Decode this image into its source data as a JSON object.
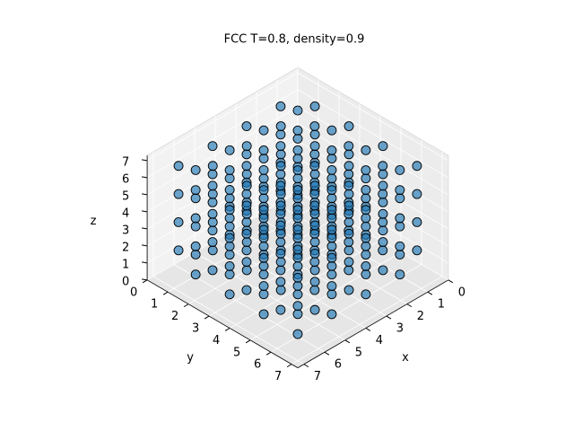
{
  "chart_data": {
    "type": "scatter3d",
    "title": "FCC T=0.8, density=0.9",
    "x_label": "x",
    "y_label": "y",
    "z_label": "z",
    "xlim": [
      0,
      7.3
    ],
    "ylim": [
      0,
      7.3
    ],
    "zlim": [
      0,
      7.3
    ],
    "xticks": [
      0,
      1,
      2,
      3,
      4,
      5,
      6,
      7
    ],
    "yticks": [
      0,
      1,
      2,
      3,
      4,
      5,
      6,
      7
    ],
    "zticks": [
      0,
      1,
      2,
      3,
      4,
      5,
      6,
      7
    ],
    "grid": true,
    "color": "#1f77b4",
    "x": [
      0.4,
      0.4,
      0.4,
      0.4,
      0.4,
      0.4,
      0.4,
      0.4,
      0.4,
      0.4,
      0.4,
      0.4,
      0.4,
      0.4,
      0.4,
      0.4,
      0.4,
      0.4,
      0.4,
      0.4,
      0.4,
      0.4,
      0.4,
      0.4,
      0.4,
      0.4,
      0.4,
      0.4,
      0.4,
      0.4,
      0.4,
      0.4,
      1.23,
      1.23,
      1.23,
      1.23,
      1.23,
      1.23,
      1.23,
      1.23,
      1.23,
      1.23,
      1.23,
      1.23,
      1.23,
      1.23,
      1.23,
      1.23,
      1.23,
      1.23,
      1.23,
      1.23,
      1.23,
      1.23,
      1.23,
      1.23,
      1.23,
      1.23,
      1.23,
      1.23,
      1.23,
      1.23,
      1.23,
      1.23,
      2.05,
      2.05,
      2.05,
      2.05,
      2.05,
      2.05,
      2.05,
      2.05,
      2.05,
      2.05,
      2.05,
      2.05,
      2.05,
      2.05,
      2.05,
      2.05,
      2.05,
      2.05,
      2.05,
      2.05,
      2.05,
      2.05,
      2.05,
      2.05,
      2.05,
      2.05,
      2.05,
      2.05,
      2.05,
      2.05,
      2.05,
      2.05,
      2.88,
      2.88,
      2.88,
      2.88,
      2.88,
      2.88,
      2.88,
      2.88,
      2.88,
      2.88,
      2.88,
      2.88,
      2.88,
      2.88,
      2.88,
      2.88,
      2.88,
      2.88,
      2.88,
      2.88,
      2.88,
      2.88,
      2.88,
      2.88,
      2.88,
      2.88,
      2.88,
      2.88,
      2.88,
      2.88,
      2.88,
      2.88,
      3.7,
      3.7,
      3.7,
      3.7,
      3.7,
      3.7,
      3.7,
      3.7,
      3.7,
      3.7,
      3.7,
      3.7,
      3.7,
      3.7,
      3.7,
      3.7,
      3.7,
      3.7,
      3.7,
      3.7,
      3.7,
      3.7,
      3.7,
      3.7,
      3.7,
      3.7,
      3.7,
      3.7,
      3.7,
      3.7,
      3.7,
      3.7,
      4.53,
      4.53,
      4.53,
      4.53,
      4.53,
      4.53,
      4.53,
      4.53,
      4.53,
      4.53,
      4.53,
      4.53,
      4.53,
      4.53,
      4.53,
      4.53,
      4.53,
      4.53,
      4.53,
      4.53,
      4.53,
      4.53,
      4.53,
      4.53,
      4.53,
      4.53,
      4.53,
      4.53,
      4.53,
      4.53,
      4.53,
      4.53,
      5.35,
      5.35,
      5.35,
      5.35,
      5.35,
      5.35,
      5.35,
      5.35,
      5.35,
      5.35,
      5.35,
      5.35,
      5.35,
      5.35,
      5.35,
      5.35,
      5.35,
      5.35,
      5.35,
      5.35,
      5.35,
      5.35,
      5.35,
      5.35,
      5.35,
      5.35,
      5.35,
      5.35,
      5.35,
      5.35,
      5.35,
      5.35,
      6.18,
      6.18,
      6.18,
      6.18,
      6.18,
      6.18,
      6.18,
      6.18,
      6.18,
      6.18,
      6.18,
      6.18,
      6.18,
      6.18,
      6.18,
      6.18,
      6.18,
      6.18,
      6.18,
      6.18,
      6.18,
      6.18,
      6.18,
      6.18,
      6.18,
      6.18,
      6.18,
      6.18,
      6.18,
      6.18,
      6.18,
      6.18
    ],
    "y": [
      0.4,
      0.4,
      0.4,
      0.4,
      1.23,
      1.23,
      1.23,
      1.23,
      2.05,
      2.05,
      2.05,
      2.05,
      2.88,
      2.88,
      2.88,
      2.88,
      3.7,
      3.7,
      3.7,
      3.7,
      4.53,
      4.53,
      4.53,
      4.53,
      5.35,
      5.35,
      5.35,
      5.35,
      6.18,
      6.18,
      6.18,
      6.18,
      0.4,
      0.4,
      0.4,
      0.4,
      1.23,
      1.23,
      1.23,
      1.23,
      2.05,
      2.05,
      2.05,
      2.05,
      2.88,
      2.88,
      2.88,
      2.88,
      3.7,
      3.7,
      3.7,
      3.7,
      4.53,
      4.53,
      4.53,
      4.53,
      5.35,
      5.35,
      5.35,
      5.35,
      6.18,
      6.18,
      6.18,
      6.18,
      0.4,
      0.4,
      0.4,
      0.4,
      1.23,
      1.23,
      1.23,
      1.23,
      2.05,
      2.05,
      2.05,
      2.05,
      2.88,
      2.88,
      2.88,
      2.88,
      3.7,
      3.7,
      3.7,
      3.7,
      4.53,
      4.53,
      4.53,
      4.53,
      5.35,
      5.35,
      5.35,
      5.35,
      6.18,
      6.18,
      6.18,
      6.18,
      0.4,
      0.4,
      0.4,
      0.4,
      1.23,
      1.23,
      1.23,
      1.23,
      2.05,
      2.05,
      2.05,
      2.05,
      2.88,
      2.88,
      2.88,
      2.88,
      3.7,
      3.7,
      3.7,
      3.7,
      4.53,
      4.53,
      4.53,
      4.53,
      5.35,
      5.35,
      5.35,
      5.35,
      6.18,
      6.18,
      6.18,
      6.18,
      0.4,
      0.4,
      0.4,
      0.4,
      1.23,
      1.23,
      1.23,
      1.23,
      2.05,
      2.05,
      2.05,
      2.05,
      2.88,
      2.88,
      2.88,
      2.88,
      3.7,
      3.7,
      3.7,
      3.7,
      4.53,
      4.53,
      4.53,
      4.53,
      5.35,
      5.35,
      5.35,
      5.35,
      6.18,
      6.18,
      6.18,
      6.18,
      0.4,
      0.4,
      0.4,
      0.4,
      1.23,
      1.23,
      1.23,
      1.23,
      2.05,
      2.05,
      2.05,
      2.05,
      2.88,
      2.88,
      2.88,
      2.88,
      3.7,
      3.7,
      3.7,
      3.7,
      4.53,
      4.53,
      4.53,
      4.53,
      5.35,
      5.35,
      5.35,
      5.35,
      6.18,
      6.18,
      6.18,
      6.18,
      0.4,
      0.4,
      0.4,
      0.4,
      1.23,
      1.23,
      1.23,
      1.23,
      2.05,
      2.05,
      2.05,
      2.05,
      2.88,
      2.88,
      2.88,
      2.88,
      3.7,
      3.7,
      3.7,
      3.7,
      4.53,
      4.53,
      4.53,
      4.53,
      5.35,
      5.35,
      5.35,
      5.35,
      6.18,
      6.18,
      6.18,
      6.18,
      0.4,
      0.4,
      0.4,
      0.4,
      1.23,
      1.23,
      1.23,
      1.23,
      2.05,
      2.05,
      2.05,
      2.05,
      2.88,
      2.88,
      2.88,
      2.88,
      3.7,
      3.7,
      3.7,
      3.7,
      4.53,
      4.53,
      4.53,
      4.53,
      5.35,
      5.35,
      5.35,
      5.35,
      6.18,
      6.18,
      6.18,
      6.18
    ],
    "z": [
      0.4,
      2.05,
      3.7,
      5.35,
      1.23,
      2.88,
      4.53,
      6.18,
      0.4,
      2.05,
      3.7,
      5.35,
      1.23,
      2.88,
      4.53,
      6.18,
      0.4,
      2.05,
      3.7,
      5.35,
      1.23,
      2.88,
      4.53,
      6.18,
      0.4,
      2.05,
      3.7,
      5.35,
      1.23,
      2.88,
      4.53,
      6.18,
      1.23,
      2.88,
      4.53,
      6.18,
      0.4,
      2.05,
      3.7,
      5.35,
      1.23,
      2.88,
      4.53,
      6.18,
      0.4,
      2.05,
      3.7,
      5.35,
      1.23,
      2.88,
      4.53,
      6.18,
      0.4,
      2.05,
      3.7,
      5.35,
      1.23,
      2.88,
      4.53,
      6.18,
      0.4,
      2.05,
      3.7,
      5.35,
      0.4,
      2.05,
      3.7,
      5.35,
      1.23,
      2.88,
      4.53,
      6.18,
      0.4,
      2.05,
      3.7,
      5.35,
      1.23,
      2.88,
      4.53,
      6.18,
      0.4,
      2.05,
      3.7,
      5.35,
      1.23,
      2.88,
      4.53,
      6.18,
      0.4,
      2.05,
      3.7,
      5.35,
      1.23,
      2.88,
      4.53,
      6.18,
      1.23,
      2.88,
      4.53,
      6.18,
      0.4,
      2.05,
      3.7,
      5.35,
      1.23,
      2.88,
      4.53,
      6.18,
      0.4,
      2.05,
      3.7,
      5.35,
      1.23,
      2.88,
      4.53,
      6.18,
      0.4,
      2.05,
      3.7,
      5.35,
      1.23,
      2.88,
      4.53,
      6.18,
      0.4,
      2.05,
      3.7,
      5.35,
      0.4,
      2.05,
      3.7,
      5.35,
      1.23,
      2.88,
      4.53,
      6.18,
      0.4,
      2.05,
      3.7,
      5.35,
      1.23,
      2.88,
      4.53,
      6.18,
      0.4,
      2.05,
      3.7,
      5.35,
      1.23,
      2.88,
      4.53,
      6.18,
      0.4,
      2.05,
      3.7,
      5.35,
      1.23,
      2.88,
      4.53,
      6.18,
      1.23,
      2.88,
      4.53,
      6.18,
      0.4,
      2.05,
      3.7,
      5.35,
      1.23,
      2.88,
      4.53,
      6.18,
      0.4,
      2.05,
      3.7,
      5.35,
      1.23,
      2.88,
      4.53,
      6.18,
      0.4,
      2.05,
      3.7,
      5.35,
      1.23,
      2.88,
      4.53,
      6.18,
      0.4,
      2.05,
      3.7,
      5.35,
      0.4,
      2.05,
      3.7,
      5.35,
      1.23,
      2.88,
      4.53,
      6.18,
      0.4,
      2.05,
      3.7,
      5.35,
      1.23,
      2.88,
      4.53,
      6.18,
      0.4,
      2.05,
      3.7,
      5.35,
      1.23,
      2.88,
      4.53,
      6.18,
      0.4,
      2.05,
      3.7,
      5.35,
      1.23,
      2.88,
      4.53,
      6.18,
      1.23,
      2.88,
      4.53,
      6.18,
      0.4,
      2.05,
      3.7,
      5.35,
      1.23,
      2.88,
      4.53,
      6.18,
      0.4,
      2.05,
      3.7,
      5.35,
      1.23,
      2.88,
      4.53,
      6.18,
      0.4,
      2.05,
      3.7,
      5.35,
      1.23,
      2.88,
      4.53,
      6.18,
      0.4,
      2.05,
      3.7,
      5.35
    ]
  }
}
